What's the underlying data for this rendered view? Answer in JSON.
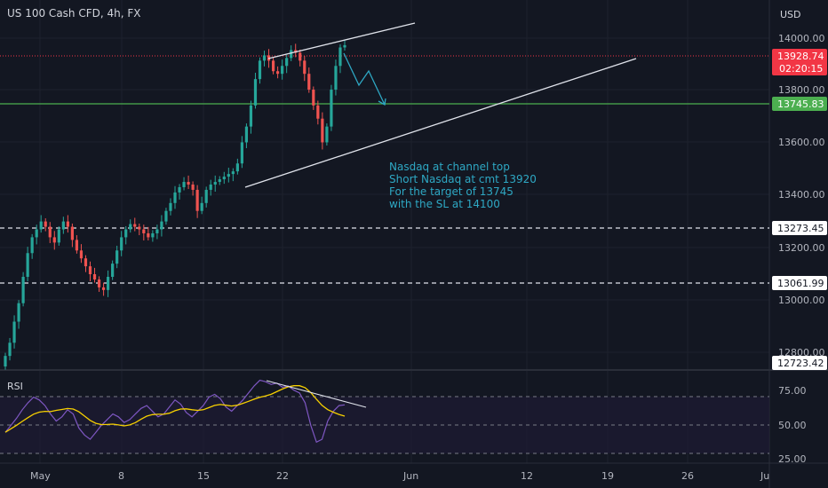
{
  "header": {
    "title": "US 100 Cash CFD, 4h, FX"
  },
  "price_axis": {
    "currency": "USD",
    "ticks": [
      "14000.00",
      "13800.00",
      "13600.00",
      "13400.00",
      "13200.00",
      "13000.00",
      "12800.00"
    ]
  },
  "price_tags": {
    "current_price": "13928.74",
    "countdown": "02:20:15",
    "target": "13745.83",
    "level_upper": "13273.45",
    "level_lower": "13061.99",
    "low_mark": "12723.42"
  },
  "rsi": {
    "label": "RSI",
    "ticks": [
      "75.00",
      "50.00",
      "25.00"
    ]
  },
  "time_axis": {
    "ticks": [
      "May",
      "8",
      "15",
      "22",
      "Jun",
      "12",
      "19",
      "26",
      "Ju"
    ]
  },
  "annotation": {
    "lines": [
      "Nasdaq at channel top",
      "Short Nasdaq at cmt 13920",
      "For the target of 13745",
      "with the SL at 14100"
    ]
  },
  "colors": {
    "background": "#131722",
    "up": "#26a69a",
    "down": "#ef5350",
    "current_price": "#f23645",
    "target_line": "#4caf50",
    "rsi_line": "#7e57c2",
    "rsi_ma": "#f7d000",
    "annotation": "#2ea8c4"
  },
  "chart_data": {
    "type": "candlestick",
    "symbol": "US 100 Cash CFD",
    "timeframe": "4h",
    "y_range": [
      12700,
      14100
    ],
    "horizontal_levels": {
      "current_price": 13928.74,
      "target": 13745.83,
      "support_upper": 13273.45,
      "support_lower": 13061.99
    },
    "close_series": [
      12750,
      12800,
      12880,
      12950,
      13050,
      13140,
      13200,
      13230,
      13260,
      13240,
      13200,
      13180,
      13230,
      13260,
      13240,
      13190,
      13150,
      13120,
      13090,
      13060,
      13040,
      13010,
      13000,
      13050,
      13100,
      13150,
      13200,
      13230,
      13250,
      13240,
      13230,
      13215,
      13200,
      13215,
      13230,
      13260,
      13300,
      13330,
      13370,
      13390,
      13410,
      13400,
      13380,
      13300,
      13330,
      13380,
      13400,
      13410,
      13420,
      13430,
      13440,
      13450,
      13480,
      13560,
      13620,
      13700,
      13800,
      13870,
      13890,
      13870,
      13830,
      13820,
      13850,
      13880,
      13910,
      13900,
      13870,
      13820,
      13760,
      13700,
      13650,
      13560,
      13620,
      13760,
      13850,
      13920,
      13928.74
    ],
    "rsi": {
      "levels": [
        70,
        50,
        30
      ],
      "y_range": [
        25,
        85
      ],
      "values": [
        47,
        52,
        57,
        63,
        68,
        72,
        70,
        66,
        60,
        55,
        58,
        63,
        60,
        50,
        45,
        42,
        47,
        52,
        56,
        60,
        58,
        54,
        56,
        60,
        64,
        66,
        62,
        58,
        60,
        65,
        70,
        67,
        61,
        58,
        62,
        66,
        72,
        74,
        71,
        65,
        62,
        66,
        70,
        75,
        80,
        84,
        83,
        81,
        82,
        79,
        80,
        77,
        75,
        68,
        52,
        40,
        42,
        55,
        62,
        66,
        66.5
      ]
    }
  }
}
